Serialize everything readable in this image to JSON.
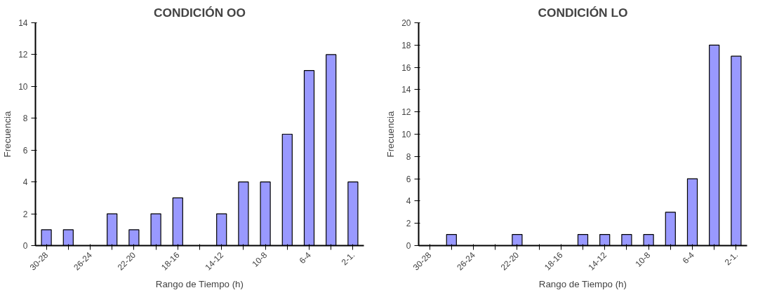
{
  "chart_data": [
    {
      "type": "bar",
      "title": "CONDICIÓN OO",
      "xlabel": "Rango de Tiempo (h)",
      "ylabel": "Frecuencia",
      "categories": [
        "30-28",
        null,
        "26-24",
        null,
        "22-20",
        null,
        "18-16",
        null,
        "14-12",
        null,
        "10-8",
        null,
        "6-4",
        null,
        "2-1."
      ],
      "series": [
        {
          "color": "#9999ff",
          "values": [
            1,
            1,
            0,
            2,
            1,
            2,
            3,
            0,
            2,
            4,
            4,
            7,
            11,
            12,
            4
          ]
        }
      ],
      "ylim": [
        0,
        14
      ],
      "yticks": [
        0,
        2,
        4,
        6,
        8,
        10,
        12,
        14
      ],
      "grid": false
    },
    {
      "type": "bar",
      "title": "CONDICIÓN LO",
      "xlabel": "Rango de Tiempo (h)",
      "ylabel": "Frecuencia",
      "categories": [
        "30-28",
        null,
        "26-24",
        null,
        "22-20",
        null,
        "18-16",
        null,
        "14-12",
        null,
        "10-8",
        null,
        "6-4",
        null,
        "2-1."
      ],
      "series": [
        {
          "color": "#9999ff",
          "values": [
            0,
            1,
            0,
            0,
            1,
            0,
            0,
            1,
            1,
            1,
            1,
            3,
            6,
            18,
            17
          ]
        }
      ],
      "ylim": [
        0,
        20
      ],
      "yticks": [
        0,
        2,
        4,
        6,
        8,
        10,
        12,
        14,
        16,
        18,
        20
      ],
      "grid": false
    }
  ]
}
